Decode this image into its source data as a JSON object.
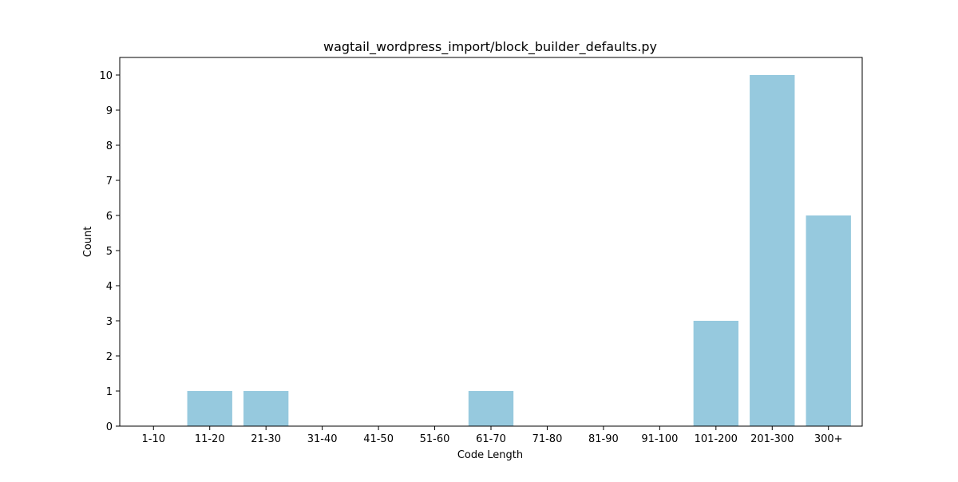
{
  "chart_data": {
    "type": "bar",
    "title": "wagtail_wordpress_import/block_builder_defaults.py",
    "xlabel": "Code Length",
    "ylabel": "Count",
    "categories": [
      "1-10",
      "11-20",
      "21-30",
      "31-40",
      "41-50",
      "51-60",
      "61-70",
      "71-80",
      "81-90",
      "91-100",
      "101-200",
      "201-300",
      "300+"
    ],
    "values": [
      0,
      1,
      1,
      0,
      0,
      0,
      1,
      0,
      0,
      0,
      3,
      10,
      6
    ],
    "ylim": [
      0,
      10.5
    ],
    "yticks": [
      0,
      1,
      2,
      3,
      4,
      5,
      6,
      7,
      8,
      9,
      10
    ],
    "grid": false,
    "bar_color": "#96c9de"
  }
}
